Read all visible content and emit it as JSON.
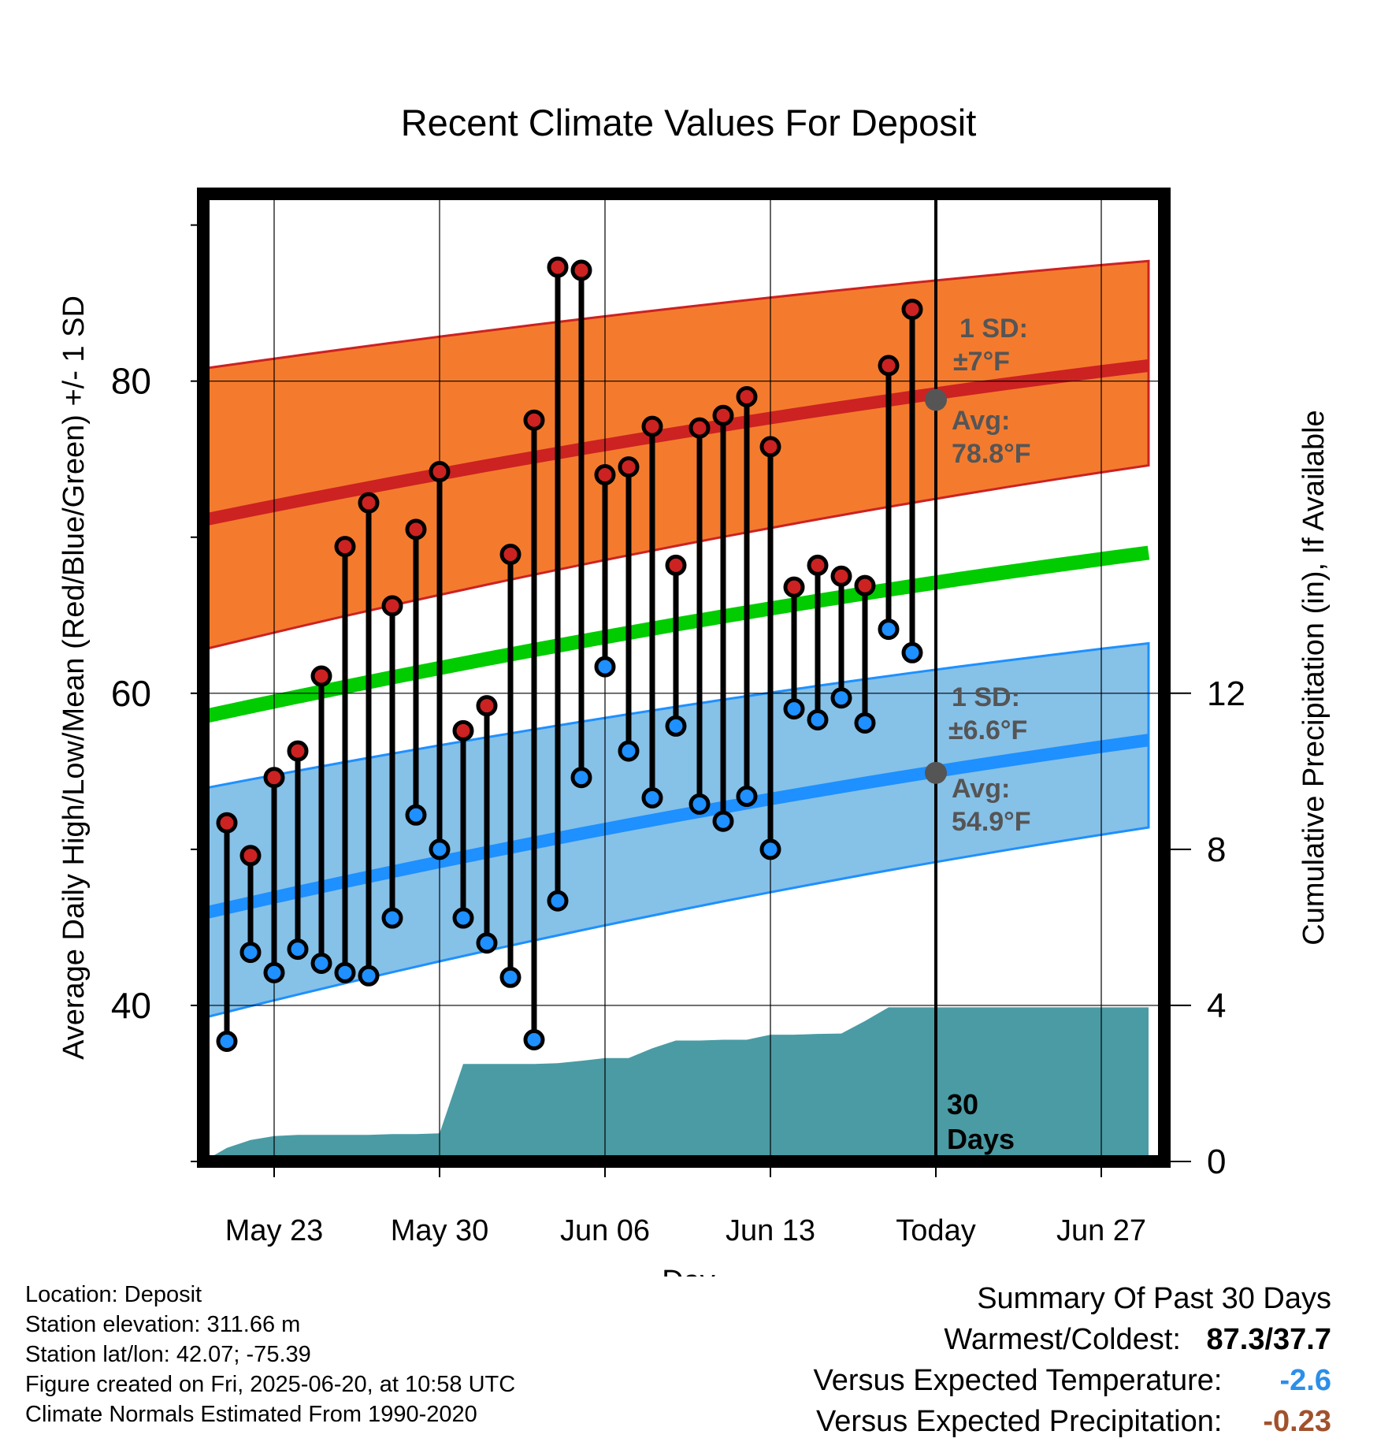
{
  "chart_data": {
    "type": "range-dot",
    "title": "Recent Climate Values For Deposit",
    "xlabel": "Day",
    "ylabel_left": "Average Daily High/Low/Mean (Red/Blue/Green) +/- 1 SD",
    "ylabel_right": "Cumulative Precipitation (in), If Available",
    "x_ticks": [
      "May 23",
      "May 30",
      "Jun 06",
      "Jun 13",
      "Today",
      "Jun 27"
    ],
    "y_ticks_left": [
      40,
      60,
      80
    ],
    "y_ticks_right": [
      0,
      4,
      8,
      12
    ],
    "ylim_left": [
      30,
      92
    ],
    "ylim_right": [
      0,
      24.8
    ],
    "days": [
      "May 21",
      "May 22",
      "May 23",
      "May 24",
      "May 25",
      "May 26",
      "May 27",
      "May 28",
      "May 29",
      "May 30",
      "May 31",
      "Jun 01",
      "Jun 02",
      "Jun 03",
      "Jun 04",
      "Jun 05",
      "Jun 06",
      "Jun 07",
      "Jun 08",
      "Jun 09",
      "Jun 10",
      "Jun 11",
      "Jun 12",
      "Jun 13",
      "Jun 14",
      "Jun 15",
      "Jun 16",
      "Jun 17",
      "Jun 18",
      "Jun 19"
    ],
    "series": [
      {
        "name": "High",
        "color": "#cc2222",
        "values": [
          51.7,
          49.6,
          54.6,
          56.3,
          61.1,
          69.4,
          72.2,
          65.6,
          70.5,
          74.2,
          57.6,
          59.2,
          68.9,
          77.5,
          87.3,
          87.1,
          74.0,
          74.5,
          77.1,
          68.2,
          77.0,
          77.8,
          79.0,
          75.8,
          66.8,
          68.2,
          67.5,
          66.9,
          81.0,
          84.6
        ]
      },
      {
        "name": "Low",
        "color": "#1e90ff",
        "values": [
          37.7,
          43.4,
          42.1,
          43.6,
          42.7,
          42.1,
          41.9,
          45.6,
          52.2,
          50.0,
          45.6,
          44.0,
          41.8,
          37.8,
          46.7,
          54.6,
          61.7,
          56.3,
          53.3,
          57.9,
          52.9,
          51.8,
          53.4,
          50.0,
          59.0,
          58.3,
          59.7,
          58.1,
          64.1,
          62.6
        ]
      }
    ],
    "normals": {
      "x": [
        "May 20",
        "Jun 29"
      ],
      "high_avg": [
        71.1,
        81.0
      ],
      "high_minus_sd": [
        62.8,
        74.6
      ],
      "high_plus_sd": [
        80.8,
        87.7
      ],
      "low_avg": [
        45.9,
        57.0
      ],
      "low_minus_sd": [
        39.2,
        51.4
      ],
      "low_plus_sd": [
        53.9,
        63.2
      ],
      "mean": [
        58.5,
        69.0
      ]
    },
    "precip_cumulative": {
      "days": [
        "May 20",
        "May 21",
        "May 22",
        "May 23",
        "May 24",
        "May 25",
        "May 26",
        "May 27",
        "May 28",
        "May 29",
        "May 30",
        "May 31",
        "Jun 01",
        "Jun 02",
        "Jun 03",
        "Jun 04",
        "Jun 05",
        "Jun 06",
        "Jun 07",
        "Jun 08",
        "Jun 09",
        "Jun 10",
        "Jun 11",
        "Jun 12",
        "Jun 13",
        "Jun 14",
        "Jun 15",
        "Jun 16",
        "Jun 17",
        "Jun 18",
        "Jun 19",
        "Jun 29"
      ],
      "values": [
        0.0,
        0.35,
        0.55,
        0.65,
        0.68,
        0.68,
        0.68,
        0.68,
        0.7,
        0.7,
        0.72,
        2.5,
        2.5,
        2.5,
        2.5,
        2.52,
        2.58,
        2.65,
        2.65,
        2.9,
        3.1,
        3.1,
        3.12,
        3.12,
        3.25,
        3.25,
        3.27,
        3.28,
        3.6,
        3.95,
        3.95,
        3.95
      ]
    },
    "today": {
      "label": "Today",
      "window_label": "30 Days",
      "high_avg": 78.8,
      "low_avg": 54.9
    },
    "annotations": {
      "high_sd": {
        "line1": "1 SD:",
        "line2": "±7°F"
      },
      "high_avg": {
        "line1": "Avg:",
        "line2": "78.8°F"
      },
      "low_sd": {
        "line1": "1 SD:",
        "line2": "±6.6°F"
      },
      "low_avg": {
        "line1": "Avg:",
        "line2": "54.9°F"
      },
      "window": {
        "line1": "30",
        "line2": "Days"
      }
    },
    "colors": {
      "high_band": "#f47b2e",
      "high_line": "#cc2222",
      "low_band": "#86c1e8",
      "low_line": "#1e90ff",
      "mean_line": "#00cc00",
      "precip": "#4a9ba4",
      "annotation": "#555555"
    }
  },
  "footer": {
    "location": "Location: Deposit",
    "elevation": "Station elevation: 311.66 m",
    "latlon": "Station lat/lon: 42.07; -75.39",
    "created": "Figure created on Fri, 2025-06-20, at 10:58 UTC",
    "normals": "Climate Normals Estimated From 1990-2020"
  },
  "summary": {
    "title": "Summary Of Past 30 Days",
    "warm_cold_label": "Warmest/Coldest:",
    "warm_cold_value": "87.3/37.7",
    "temp_label": "Versus Expected Temperature:",
    "temp_value": "-2.6",
    "temp_color": "#2b8fe8",
    "precip_label": "Versus Expected Precipitation:",
    "precip_value": "-0.23",
    "precip_color": "#a0522d"
  }
}
